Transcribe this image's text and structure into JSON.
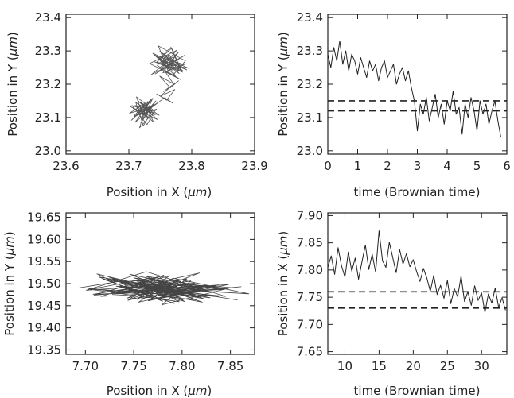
{
  "chart_data": [
    {
      "type": "line",
      "description_free": true,
      "xlabel": "Position in X (",
      "xlabel_unit": "μm",
      "xlabel_close": ")",
      "ylabel": "Position in Y (",
      "ylabel_unit": "μm",
      "ylabel_close": ")",
      "xlim": [
        23.6,
        23.9
      ],
      "ylim": [
        22.99,
        23.41
      ],
      "xticks": [
        "23.6",
        "23.7",
        "23.8",
        "23.9"
      ],
      "yticks": [
        "23.0",
        "23.1",
        "23.2",
        "23.3",
        "23.4"
      ],
      "color": "#555555",
      "series": [
        {
          "kind": "trajectory",
          "x": [
            23.766,
            23.742,
            23.789,
            23.751,
            23.776,
            23.733,
            23.77,
            23.79,
            23.747,
            23.762,
            23.781,
            23.738,
            23.774,
            23.756,
            23.795,
            23.744,
            23.768,
            23.785,
            23.752,
            23.76,
            23.779,
            23.736,
            23.771,
            23.758,
            23.792,
            23.748,
            23.767,
            23.783,
            23.74,
            23.763,
            23.776,
            23.754,
            23.788,
            23.745,
            23.765,
            23.772,
            23.749,
            23.786,
            23.757,
            23.769,
            23.741,
            23.78,
            23.761,
            23.753,
            23.776,
            23.764,
            23.745,
            23.782,
            23.758,
            23.771,
            23.749,
            23.766,
            23.779,
            23.755,
            23.768,
            23.751,
            23.773,
            23.76,
            23.744,
            23.77,
            23.757,
            23.735,
            23.748,
            23.722,
            23.74,
            23.709,
            23.731,
            23.714,
            23.745,
            23.702,
            23.727,
            23.738,
            23.71,
            23.733,
            23.719,
            23.748,
            23.705,
            23.729,
            23.741,
            23.712,
            23.724,
            23.736,
            23.701,
            23.73,
            23.717,
            23.744,
            23.708,
            23.726,
            23.739,
            23.713,
            23.721,
            23.735,
            23.704,
            23.728,
            23.742,
            23.711,
            23.723,
            23.737,
            23.716,
            23.731,
            23.707,
            23.725,
            23.743,
            23.719,
            23.732,
            23.71,
            23.727,
            23.72
          ],
          "y": [
            23.258,
            23.231,
            23.287,
            23.246,
            23.302,
            23.262,
            23.227,
            23.27,
            23.315,
            23.241,
            23.255,
            23.293,
            23.224,
            23.281,
            23.248,
            23.266,
            23.308,
            23.236,
            23.274,
            23.252,
            23.296,
            23.229,
            23.263,
            23.285,
            23.243,
            23.277,
            23.311,
            23.238,
            23.268,
            23.25,
            23.291,
            23.234,
            23.259,
            23.283,
            23.244,
            23.272,
            23.298,
            23.24,
            23.265,
            23.254,
            23.288,
            23.232,
            23.276,
            23.26,
            23.247,
            23.29,
            23.256,
            23.214,
            23.237,
            23.201,
            23.224,
            23.189,
            23.21,
            23.178,
            23.196,
            23.165,
            23.184,
            23.152,
            23.171,
            23.143,
            23.16,
            23.128,
            23.147,
            23.115,
            23.139,
            23.102,
            23.126,
            23.151,
            23.094,
            23.133,
            23.111,
            23.158,
            23.086,
            23.122,
            23.145,
            23.107,
            23.136,
            23.079,
            23.119,
            23.162,
            23.098,
            23.131,
            23.113,
            23.148,
            23.069,
            23.125,
            23.104,
            23.141,
            23.087,
            23.129,
            23.116,
            23.154,
            23.092,
            23.134,
            23.108,
            23.145,
            23.075,
            23.121,
            23.139,
            23.099,
            23.127,
            23.113,
            23.15,
            23.084,
            23.124,
            23.136,
            23.105,
            23.118
          ]
        }
      ]
    },
    {
      "type": "line",
      "xlabel": "time (Brownian time)",
      "ylabel": "Position in Y (",
      "ylabel_unit": "μm",
      "ylabel_close": ")",
      "xlim": [
        0,
        6
      ],
      "ylim": [
        22.99,
        23.41
      ],
      "xticks": [
        "0",
        "1",
        "2",
        "3",
        "4",
        "5",
        "6"
      ],
      "yticks": [
        "23.0",
        "23.1",
        "23.2",
        "23.3",
        "23.4"
      ],
      "color": "#222222",
      "series": [
        {
          "kind": "timeseries",
          "x": [
            0.0,
            0.1,
            0.2,
            0.3,
            0.4,
            0.5,
            0.6,
            0.7,
            0.8,
            0.9,
            1.0,
            1.1,
            1.2,
            1.3,
            1.4,
            1.5,
            1.6,
            1.7,
            1.8,
            1.9,
            2.0,
            2.1,
            2.2,
            2.3,
            2.4,
            2.5,
            2.6,
            2.7,
            2.8,
            2.9,
            3.0,
            3.1,
            3.2,
            3.3,
            3.4,
            3.5,
            3.6,
            3.7,
            3.8,
            3.9,
            4.0,
            4.1,
            4.2,
            4.3,
            4.4,
            4.5,
            4.6,
            4.7,
            4.8,
            4.9,
            5.0,
            5.1,
            5.2,
            5.3,
            5.4,
            5.5,
            5.6,
            5.7,
            5.8
          ],
          "y": [
            23.29,
            23.25,
            23.31,
            23.27,
            23.33,
            23.26,
            23.3,
            23.24,
            23.29,
            23.27,
            23.23,
            23.28,
            23.25,
            23.22,
            23.27,
            23.24,
            23.26,
            23.21,
            23.25,
            23.27,
            23.22,
            23.24,
            23.26,
            23.2,
            23.23,
            23.25,
            23.21,
            23.24,
            23.19,
            23.15,
            23.06,
            23.14,
            23.11,
            23.16,
            23.09,
            23.13,
            23.17,
            23.1,
            23.14,
            23.08,
            23.15,
            23.12,
            23.18,
            23.11,
            23.13,
            23.05,
            23.14,
            23.1,
            23.16,
            23.12,
            23.06,
            23.15,
            23.11,
            23.14,
            23.08,
            23.12,
            23.15,
            23.09,
            23.04
          ]
        }
      ],
      "hlines": [
        23.15,
        23.12
      ],
      "hline_from": 0
    },
    {
      "type": "line",
      "xlabel": "Position in X (",
      "xlabel_unit": "μm",
      "xlabel_close": ")",
      "ylabel": "Position in Y (",
      "ylabel_unit": "μm",
      "ylabel_close": ")",
      "xlim": [
        7.68,
        7.875
      ],
      "ylim": [
        19.34,
        19.66
      ],
      "xticks": [
        "7.70",
        "7.75",
        "7.80",
        "7.85"
      ],
      "yticks": [
        "19.35",
        "19.40",
        "19.45",
        "19.50",
        "19.55",
        "19.60",
        "19.65"
      ],
      "color": "#444444",
      "series": [
        {
          "kind": "trajectory",
          "x": [
            7.692,
            7.735,
            7.76,
            7.712,
            7.79,
            7.741,
            7.822,
            7.768,
            7.705,
            7.797,
            7.752,
            7.836,
            7.728,
            7.781,
            7.744,
            7.813,
            7.701,
            7.763,
            7.845,
            7.736,
            7.792,
            7.718,
            7.806,
            7.757,
            7.829,
            7.741,
            7.776,
            7.709,
            7.838,
            7.765,
            7.795,
            7.732,
            7.818,
            7.748,
            7.861,
            7.786,
            7.725,
            7.803,
            7.771,
            7.844,
            7.716,
            7.787,
            7.754,
            7.826,
            7.739,
            7.809,
            7.779,
            7.851,
            7.722,
            7.798,
            7.761,
            7.833,
            7.746,
            7.815,
            7.703,
            7.784,
            7.756,
            7.821,
            7.732,
            7.869,
            7.791,
            7.743,
            7.807,
            7.769,
            7.838,
            7.714,
            7.78,
            7.752,
            7.826,
            7.737,
            7.801,
            7.773,
            7.857,
            7.724,
            7.794,
            7.748,
            7.817,
            7.762,
            7.84,
            7.708,
            7.785,
            7.755,
            7.83,
            7.742,
            7.805,
            7.777,
            7.848,
            7.729,
            7.799,
            7.766,
            7.823,
            7.75,
            7.813,
            7.785,
            7.76
          ],
          "y": [
            19.49,
            19.505,
            19.47,
            19.522,
            19.481,
            19.498,
            19.466,
            19.513,
            19.487,
            19.459,
            19.507,
            19.492,
            19.476,
            19.519,
            19.462,
            19.501,
            19.485,
            19.527,
            19.471,
            19.495,
            19.455,
            19.51,
            19.479,
            19.503,
            19.468,
            19.488,
            19.516,
            19.474,
            19.497,
            19.461,
            19.509,
            19.482,
            19.524,
            19.466,
            19.493,
            19.478,
            19.514,
            19.459,
            19.5,
            19.487,
            19.471,
            19.518,
            19.464,
            19.496,
            19.483,
            19.506,
            19.452,
            19.491,
            19.511,
            19.469,
            19.499,
            19.48,
            19.521,
            19.463,
            19.489,
            19.475,
            19.508,
            19.458,
            19.494,
            19.477,
            19.512,
            19.467,
            19.501,
            19.485,
            19.47,
            19.515,
            19.46,
            19.497,
            19.484,
            19.506,
            19.473,
            19.492,
            19.463,
            19.509,
            19.481,
            19.5,
            19.469,
            19.517,
            19.487,
            19.476,
            19.503,
            19.458,
            19.494,
            19.482,
            19.511,
            19.466,
            19.498,
            19.478,
            19.505,
            19.462,
            19.49,
            19.513,
            19.472,
            19.496,
            19.484
          ]
        }
      ]
    },
    {
      "type": "line",
      "xlabel": "time (Brownian time)",
      "ylabel": "Position in X (",
      "ylabel_unit": "μm",
      "ylabel_close": ")",
      "xlim": [
        7.5,
        33.7
      ],
      "ylim": [
        7.645,
        7.905
      ],
      "xticks": [
        "10",
        "15",
        "20",
        "25",
        "30"
      ],
      "yticks": [
        "7.65",
        "7.70",
        "7.75",
        "7.80",
        "7.85",
        "7.90"
      ],
      "color": "#222222",
      "series": [
        {
          "kind": "timeseries",
          "x": [
            7.5,
            8.0,
            8.5,
            9.0,
            9.5,
            10.0,
            10.5,
            11.0,
            11.5,
            12.0,
            12.5,
            13.0,
            13.5,
            14.0,
            14.5,
            15.0,
            15.5,
            16.0,
            16.5,
            17.0,
            17.5,
            18.0,
            18.5,
            19.0,
            19.5,
            20.0,
            20.5,
            21.0,
            21.5,
            22.0,
            22.5,
            23.0,
            23.5,
            24.0,
            24.5,
            25.0,
            25.5,
            26.0,
            26.5,
            27.0,
            27.5,
            28.0,
            28.5,
            29.0,
            29.5,
            30.0,
            30.5,
            31.0,
            31.5,
            32.0,
            32.5,
            33.0,
            33.5
          ],
          "y": [
            7.805,
            7.826,
            7.792,
            7.841,
            7.808,
            7.787,
            7.833,
            7.798,
            7.822,
            7.783,
            7.815,
            7.846,
            7.801,
            7.829,
            7.796,
            7.872,
            7.817,
            7.805,
            7.851,
            7.823,
            7.795,
            7.838,
            7.811,
            7.83,
            7.806,
            7.819,
            7.797,
            7.779,
            7.803,
            7.785,
            7.761,
            7.79,
            7.755,
            7.772,
            7.748,
            7.781,
            7.738,
            7.766,
            7.751,
            7.789,
            7.742,
            7.76,
            7.735,
            7.771,
            7.744,
            7.758,
            7.722,
            7.756,
            7.739,
            7.767,
            7.731,
            7.749,
            7.726
          ]
        }
      ],
      "hlines": [
        7.76,
        7.73
      ],
      "hline_from": 7.5
    }
  ]
}
